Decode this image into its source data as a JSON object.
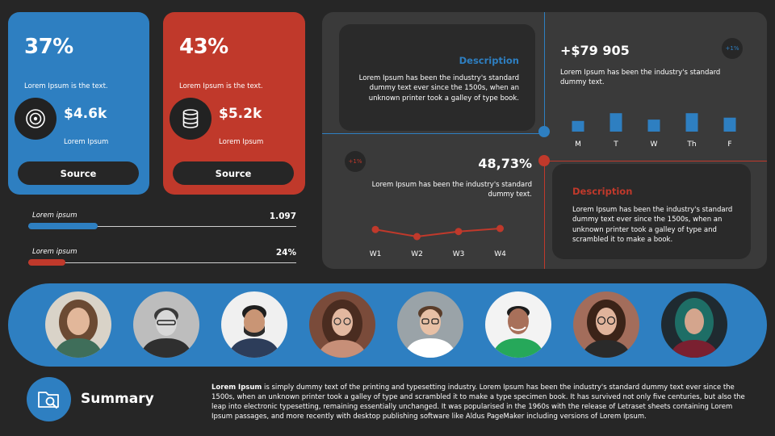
{
  "cards": [
    {
      "percent": "37%",
      "sub": "Lorem Ipsum is the text.",
      "amount": "$4.6k",
      "amount_sub": "Lorem Ipsum",
      "source_label": "Source",
      "color": "#2e7fc1",
      "icon": "target-icon"
    },
    {
      "percent": "43%",
      "sub": "Lorem Ipsum is the text.",
      "amount": "$5.2k",
      "amount_sub": "Lorem Ipsum",
      "source_label": "Source",
      "color": "#c0392b",
      "icon": "database-icon"
    }
  ],
  "progress": [
    {
      "label": "Lorem ipsum",
      "value": "1.097",
      "fraction": 0.26,
      "color": "#2e7fc1"
    },
    {
      "label": "Lorem ipsum",
      "value": "24%",
      "fraction": 0.14,
      "color": "#c0392b"
    }
  ],
  "dashboard": {
    "desc_top": {
      "title": "Description",
      "text": "Lorem Ipsum has been the industry's standard dummy text ever since the 1500s, when an unknown printer took a galley of type book."
    },
    "stat_top": {
      "value": "+$79 905",
      "text": "Lorem Ipsum has been the industry's standard dummy text.",
      "badge": "+1%"
    },
    "stat_bottom": {
      "value": "48,73%",
      "text": "Lorem Ipsum has been the industry's standard dummy text.",
      "badge": "+1%"
    },
    "desc_bottom": {
      "title": "Description",
      "text": "Lorem Ipsum has been the industry's standard dummy text ever since the 1500s, when an unknown printer took a galley of type and scrambled it to make a book."
    }
  },
  "chart_data": [
    {
      "type": "bar",
      "categories": [
        "M",
        "T",
        "W",
        "Th",
        "F"
      ],
      "values": [
        0.55,
        0.95,
        0.62,
        0.95,
        0.72
      ],
      "color": "#2e7fc1"
    },
    {
      "type": "line",
      "categories": [
        "W1",
        "W2",
        "W3",
        "W4"
      ],
      "values": [
        0.55,
        0.2,
        0.45,
        0.6
      ],
      "color": "#c0392b"
    }
  ],
  "people": [
    "avatar-1",
    "avatar-2",
    "avatar-3",
    "avatar-4",
    "avatar-5",
    "avatar-6",
    "avatar-7",
    "avatar-8"
  ],
  "summary": {
    "title": "Summary",
    "lead": "Lorem Ipsum",
    "text": " is simply dummy text of the printing and typesetting industry. Lorem Ipsum has been the industry's standard dummy text ever since the 1500s, when an unknown printer took a galley of type and scrambled it to make a type specimen book. It has survived not only five centuries, but also the leap into electronic typesetting, remaining essentially unchanged. It was popularised in the 1960s with the release of Letraset sheets containing Lorem Ipsum passages, and more recently with desktop publishing software like Aldus PageMaker including versions of Lorem Ipsum."
  },
  "colors": {
    "blue": "#2e7fc1",
    "red": "#c0392b",
    "background": "#262626",
    "panel": "#3a3a3a"
  }
}
